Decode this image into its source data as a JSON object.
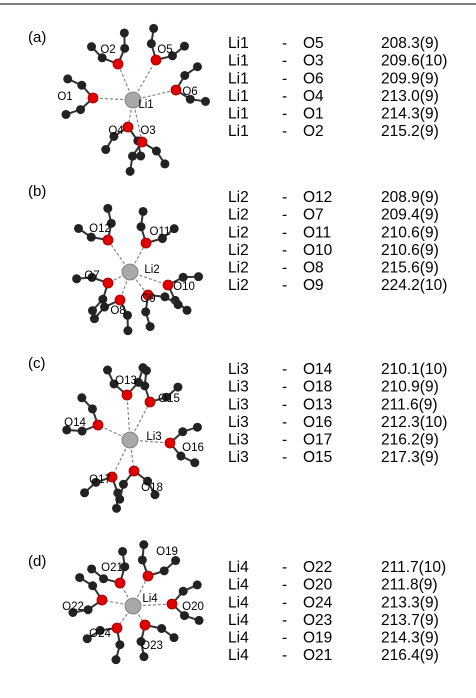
{
  "panels": [
    {
      "label": "(a)",
      "atoms": [
        "Li1",
        "O2",
        "O5",
        "O1",
        "O6",
        "O4",
        "O3"
      ],
      "bonds": [
        [
          "Li1",
          "-",
          "O5",
          "208.3(9)"
        ],
        [
          "Li1",
          "-",
          "O3",
          "209.6(10)"
        ],
        [
          "Li1",
          "-",
          "O6",
          "209.9(9)"
        ],
        [
          "Li1",
          "-",
          "O4",
          "213.0(9)"
        ],
        [
          "Li1",
          "-",
          "O1",
          "214.3(9)"
        ],
        [
          "Li1",
          "-",
          "O2",
          "215.2(9)"
        ]
      ]
    },
    {
      "label": "(b)",
      "atoms": [
        "Li2",
        "O12",
        "O11",
        "O7",
        "O10",
        "O9",
        "O8"
      ],
      "bonds": [
        [
          "Li2",
          "-",
          "O12",
          "208.9(9)"
        ],
        [
          "Li2",
          "-",
          "O7",
          "209.4(9)"
        ],
        [
          "Li2",
          "-",
          "O11",
          "210.6(9)"
        ],
        [
          "Li2",
          "-",
          "O10",
          "210.6(9)"
        ],
        [
          "Li2",
          "-",
          "O8",
          "215.6(9)"
        ],
        [
          "Li2",
          "-",
          "O9",
          "224.2(10)"
        ]
      ]
    },
    {
      "label": "(c)",
      "atoms": [
        "Li3",
        "O13",
        "O15",
        "O14",
        "O16",
        "O17",
        "O18"
      ],
      "bonds": [
        [
          "Li3",
          "-",
          "O14",
          "210.1(10)"
        ],
        [
          "Li3",
          "-",
          "O18",
          "210.9(9)"
        ],
        [
          "Li3",
          "-",
          "O13",
          "211.6(9)"
        ],
        [
          "Li3",
          "-",
          "O16",
          "212.3(10)"
        ],
        [
          "Li3",
          "-",
          "O17",
          "216.2(9)"
        ],
        [
          "Li3",
          "-",
          "O15",
          "217.3(9)"
        ]
      ]
    },
    {
      "label": "(d)",
      "atoms": [
        "Li4",
        "O19",
        "O21",
        "O22",
        "O20",
        "O24",
        "O23"
      ],
      "bonds": [
        [
          "Li4",
          "-",
          "O22",
          "211.7(10)"
        ],
        [
          "Li4",
          "-",
          "O20",
          "211.8(9)"
        ],
        [
          "Li4",
          "-",
          "O24",
          "213.3(9)"
        ],
        [
          "Li4",
          "-",
          "O23",
          "213.7(9)"
        ],
        [
          "Li4",
          "-",
          "O19",
          "214.3(9)"
        ],
        [
          "Li4",
          "-",
          "O21",
          "216.4(9)"
        ]
      ]
    }
  ]
}
